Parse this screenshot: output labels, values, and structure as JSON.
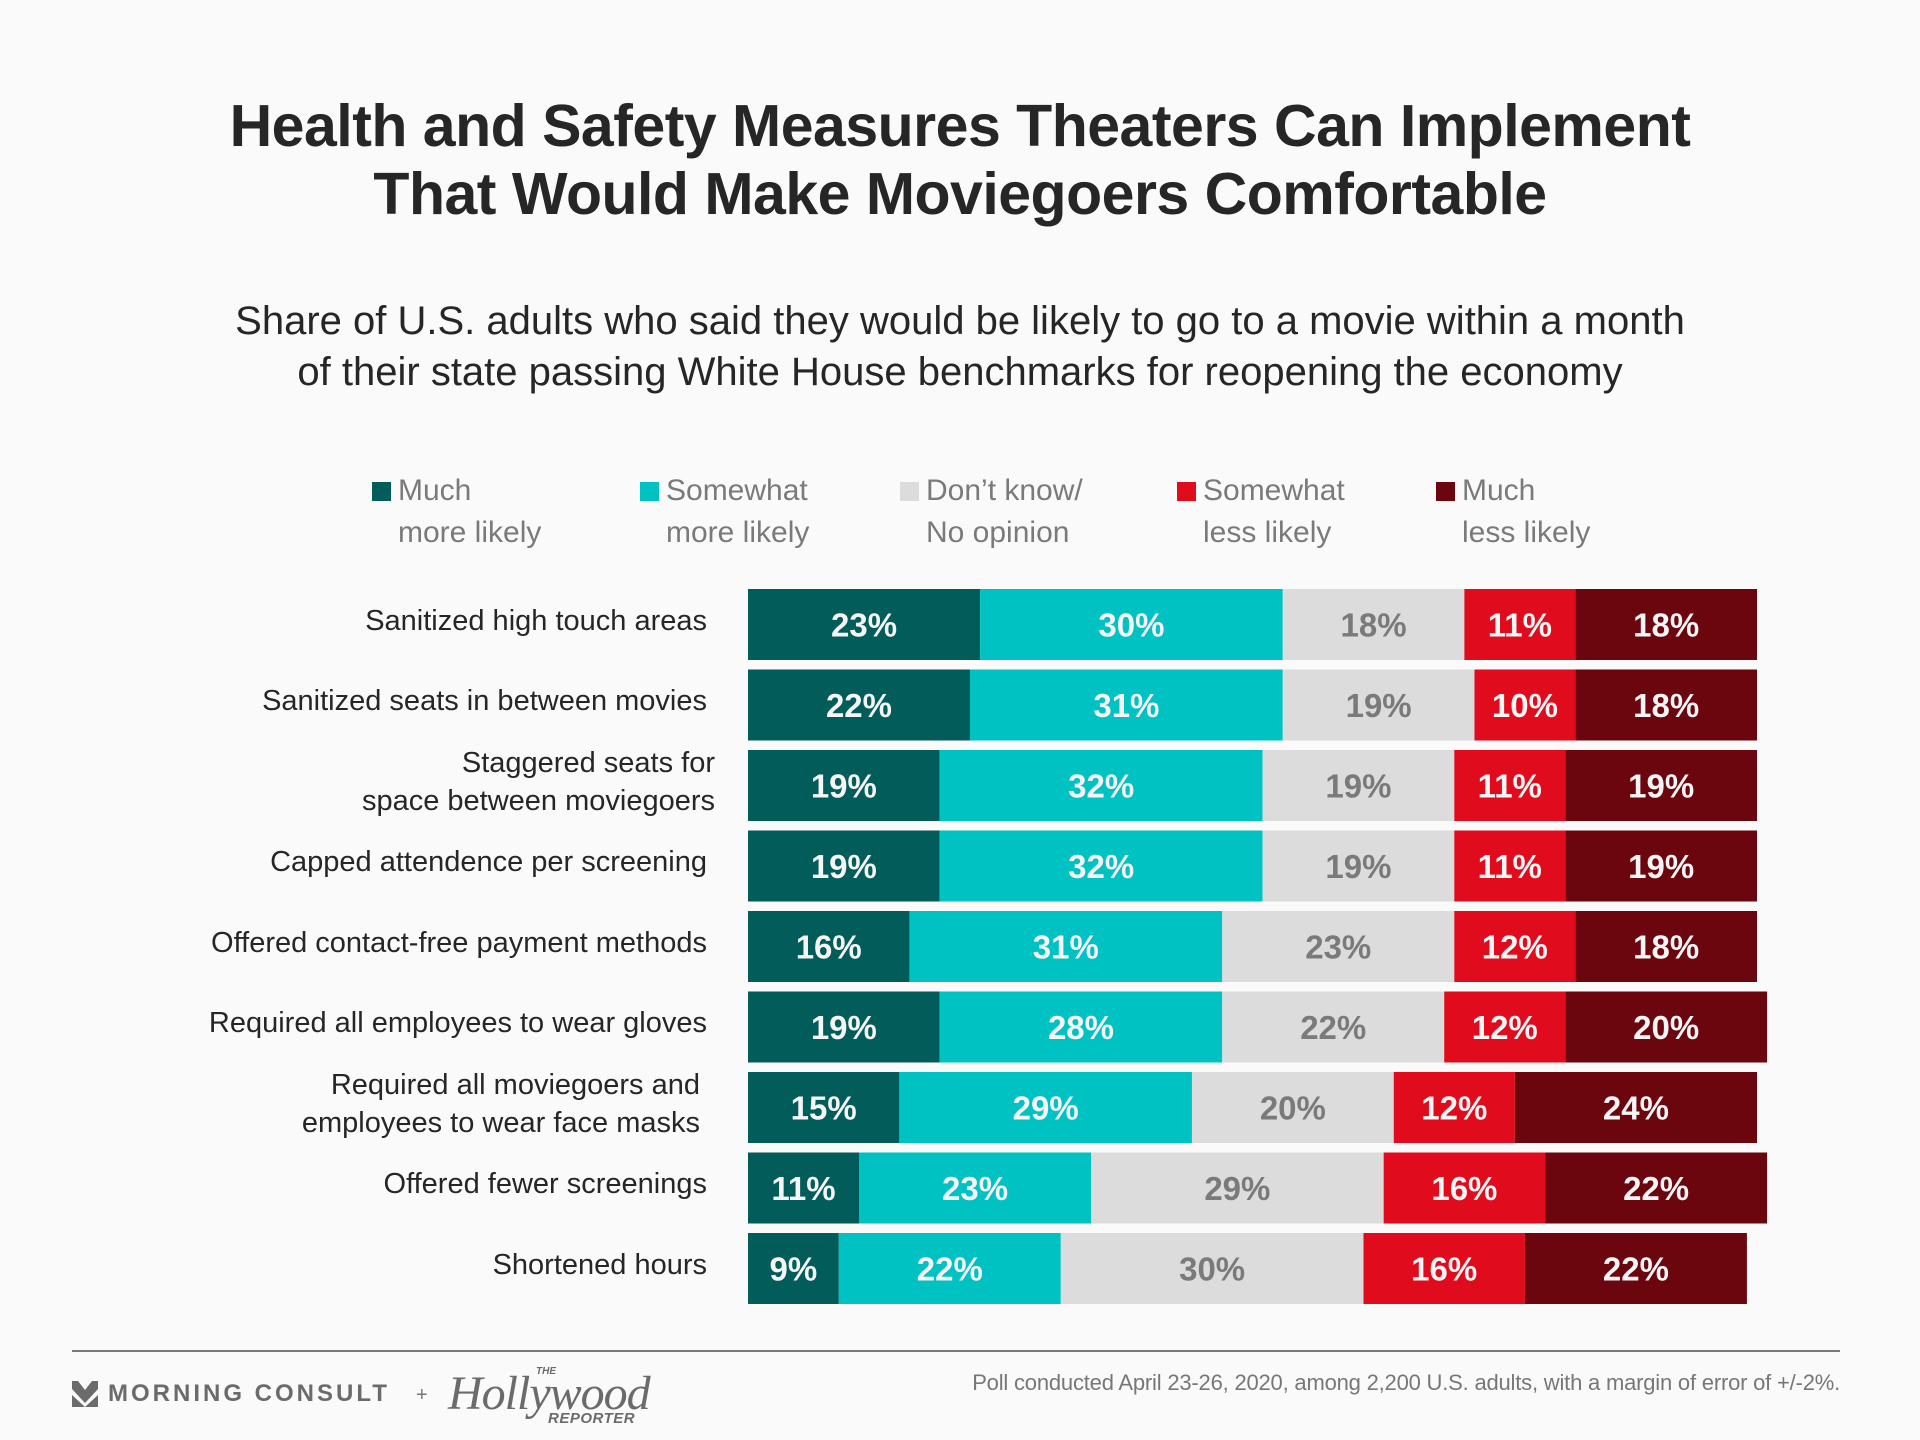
{
  "header": {
    "title_line1": "Health and Safety Measures Theaters Can Implement",
    "title_line2": "That Would Make Moviegoers Comfortable",
    "subtitle_line1": "Share of U.S. adults who said they would be likely to go to a movie within a month",
    "subtitle_line2": "of their state passing White House benchmarks for reopening the economy"
  },
  "colors": {
    "much_more": "#025c59",
    "somewhat_more": "#00c2c2",
    "dont_know": "#dcdcdc",
    "somewhat_less": "#e00b1c",
    "much_less": "#6b050e",
    "label_light": "#f5f5f5",
    "label_gray": "#7a7a7a"
  },
  "chart_data": {
    "type": "bar",
    "orientation": "horizontal",
    "stacked": true,
    "unit": "%",
    "title": "Health and Safety Measures Theaters Can Implement That Would Make Moviegoers Comfortable",
    "subtitle": "Share of U.S. adults who said they would be likely to go to a movie within a month of their state passing White House benchmarks for reopening the economy",
    "xlabel": "",
    "ylabel": "",
    "xlim": [
      0,
      100
    ],
    "grid": false,
    "legend_position": "top",
    "categories": [
      "Sanitized high touch areas",
      "Sanitized seats in between movies",
      "Staggered seats for\nspace between moviegoers",
      "Capped attendence per screening",
      "Offered contact-free payment methods",
      "Required all employees to wear gloves",
      "Required all moviegoers and\nemployees to wear face masks",
      "Offered fewer screenings",
      "Shortened hours"
    ],
    "series": [
      {
        "name": "Much\nmore likely",
        "color_key": "much_more",
        "values": [
          23,
          22,
          19,
          19,
          16,
          19,
          15,
          11,
          9
        ]
      },
      {
        "name": "Somewhat\nmore likely",
        "color_key": "somewhat_more",
        "values": [
          30,
          31,
          32,
          32,
          31,
          28,
          29,
          23,
          22
        ]
      },
      {
        "name": "Don’t know/\nNo opinion",
        "color_key": "dont_know",
        "values": [
          18,
          19,
          19,
          19,
          23,
          22,
          20,
          29,
          30
        ]
      },
      {
        "name": "Somewhat\nless likely",
        "color_key": "somewhat_less",
        "values": [
          11,
          10,
          11,
          11,
          12,
          12,
          12,
          16,
          16
        ]
      },
      {
        "name": "Much\nless likely",
        "color_key": "much_less",
        "values": [
          18,
          18,
          19,
          19,
          18,
          20,
          24,
          22,
          22
        ]
      }
    ]
  },
  "footer": {
    "note": "Poll conducted April 23-26, 2020, among 2,200 U.S. adults, with a margin of error of +/-2%.",
    "logo_morning_consult": "MORNING CONSULT",
    "logo_plus": "+",
    "logo_thr_the": "THE",
    "logo_thr_main": "Hollywood",
    "logo_thr_reporter": "REPORTER"
  }
}
